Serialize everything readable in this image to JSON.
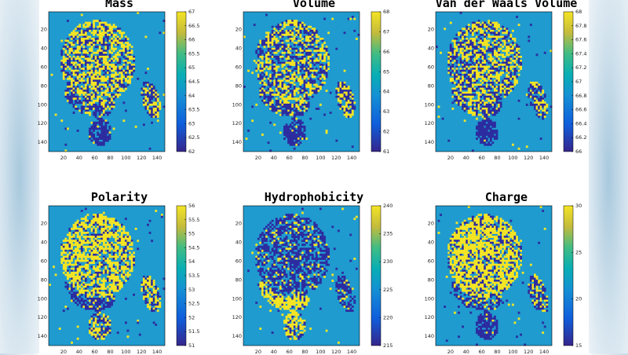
{
  "colors": {
    "background": "#1f9bcf",
    "low": "#2c2ca0",
    "high": "#f4e424",
    "axis": "#000000"
  },
  "chart_data": [
    {
      "type": "heatmap",
      "title": "Mass",
      "xlim": [
        1,
        150
      ],
      "ylim": [
        1,
        150
      ],
      "xticks": [
        "20",
        "40",
        "60",
        "80",
        "100",
        "120",
        "140"
      ],
      "yticks": [
        "20",
        "40",
        "60",
        "80",
        "100",
        "120",
        "140"
      ],
      "colorbar": {
        "ticks": [
          "62",
          "62.5",
          "63",
          "63.5",
          "64",
          "64.5",
          "65",
          "65.5",
          "66",
          "66.5",
          "67"
        ],
        "min": 62,
        "max": 67
      }
    },
    {
      "type": "heatmap",
      "title": "Volume",
      "xlim": [
        1,
        150
      ],
      "ylim": [
        1,
        150
      ],
      "xticks": [
        "20",
        "40",
        "60",
        "80",
        "100",
        "120",
        "140"
      ],
      "yticks": [
        "20",
        "40",
        "60",
        "80",
        "100",
        "120",
        "140"
      ],
      "colorbar": {
        "ticks": [
          "61",
          "62",
          "63",
          "64",
          "65",
          "66",
          "67",
          "68"
        ],
        "min": 61,
        "max": 68
      }
    },
    {
      "type": "heatmap",
      "title": "Van der Waals Volume",
      "xlim": [
        1,
        150
      ],
      "ylim": [
        1,
        150
      ],
      "xticks": [
        "20",
        "40",
        "60",
        "80",
        "100",
        "120",
        "140"
      ],
      "yticks": [
        "20",
        "40",
        "60",
        "80",
        "100",
        "120",
        "140"
      ],
      "colorbar": {
        "ticks": [
          "66",
          "66.2",
          "66.4",
          "66.6",
          "66.8",
          "67",
          "67.2",
          "67.4",
          "67.6",
          "67.8",
          "68"
        ],
        "min": 66,
        "max": 68
      }
    },
    {
      "type": "heatmap",
      "title": "Polarity",
      "xlim": [
        1,
        150
      ],
      "ylim": [
        1,
        150
      ],
      "xticks": [
        "20",
        "40",
        "60",
        "80",
        "100",
        "120",
        "140"
      ],
      "yticks": [
        "20",
        "40",
        "60",
        "80",
        "100",
        "120",
        "140"
      ],
      "colorbar": {
        "ticks": [
          "51",
          "51.5",
          "52",
          "52.5",
          "53",
          "53.5",
          "54",
          "54.5",
          "55",
          "55.5",
          "56"
        ],
        "min": 51,
        "max": 56
      }
    },
    {
      "type": "heatmap",
      "title": "Hydrophobicity",
      "xlim": [
        1,
        150
      ],
      "ylim": [
        1,
        150
      ],
      "xticks": [
        "20",
        "40",
        "60",
        "80",
        "100",
        "120",
        "140"
      ],
      "yticks": [
        "20",
        "40",
        "60",
        "80",
        "100",
        "120",
        "140"
      ],
      "colorbar": {
        "ticks": [
          "215",
          "220",
          "225",
          "230",
          "235",
          "240"
        ],
        "min": 215,
        "max": 240
      }
    },
    {
      "type": "heatmap",
      "title": "Charge",
      "xlim": [
        1,
        150
      ],
      "ylim": [
        1,
        150
      ],
      "xticks": [
        "20",
        "40",
        "60",
        "80",
        "100",
        "120",
        "140"
      ],
      "yticks": [
        "20",
        "40",
        "60",
        "80",
        "100",
        "120",
        "140"
      ],
      "colorbar": {
        "ticks": [
          "15",
          "20",
          "25",
          "30"
        ],
        "min": 15,
        "max": 30
      }
    }
  ]
}
